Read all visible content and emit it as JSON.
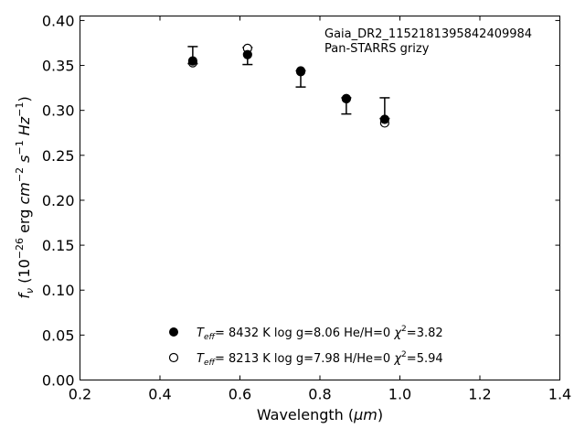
{
  "chart_data": {
    "type": "scatter",
    "annotation_lines": [
      "Gaia_DR2_1152181395842409984",
      "Pan-STARRS grizy"
    ],
    "xlabel": "Wavelength (",
    "xlabel_unit": "μm",
    "xlabel_close": ")",
    "ylabel": "f_ν (10^-26 erg cm^-2 s^-1 Hz^-1)",
    "xlim": [
      0.2,
      1.4
    ],
    "ylim": [
      0.0,
      0.405
    ],
    "xticks": [
      "0.2",
      "0.4",
      "0.6",
      "0.8",
      "1.0",
      "1.2",
      "1.4"
    ],
    "xtick_values": [
      0.2,
      0.4,
      0.6,
      0.8,
      1.0,
      1.2,
      1.4
    ],
    "yticks": [
      "0.00",
      "0.05",
      "0.10",
      "0.15",
      "0.20",
      "0.25",
      "0.30",
      "0.35",
      "0.40"
    ],
    "ytick_values": [
      0.0,
      0.05,
      0.1,
      0.15,
      0.2,
      0.25,
      0.3,
      0.35,
      0.4
    ],
    "observed": {
      "x": [
        0.482,
        0.619,
        0.752,
        0.866,
        0.962
      ],
      "y": [
        0.351,
        0.361,
        0.342,
        0.305,
        0.293
      ],
      "yerr_low": [
        0.352,
        0.351,
        0.326,
        0.296,
        0.291
      ],
      "yerr_high": [
        0.371,
        0.37,
        0.344,
        0.314,
        0.314
      ]
    },
    "series": [
      {
        "marker": "filled",
        "teff": "8432 K",
        "logg": "log g=8.06",
        "comp": "He/H=0",
        "chi2": "3.82",
        "x": [
          0.482,
          0.619,
          0.752,
          0.866,
          0.962
        ],
        "y": [
          0.355,
          0.362,
          0.343,
          0.313,
          0.29
        ]
      },
      {
        "marker": "open",
        "teff": "8213 K",
        "logg": "log g=7.98",
        "comp": "H/He=0",
        "chi2": "5.94",
        "x": [
          0.482,
          0.619,
          0.752,
          0.866,
          0.962
        ],
        "y": [
          0.353,
          0.369,
          0.344,
          0.313,
          0.286
        ]
      }
    ]
  }
}
